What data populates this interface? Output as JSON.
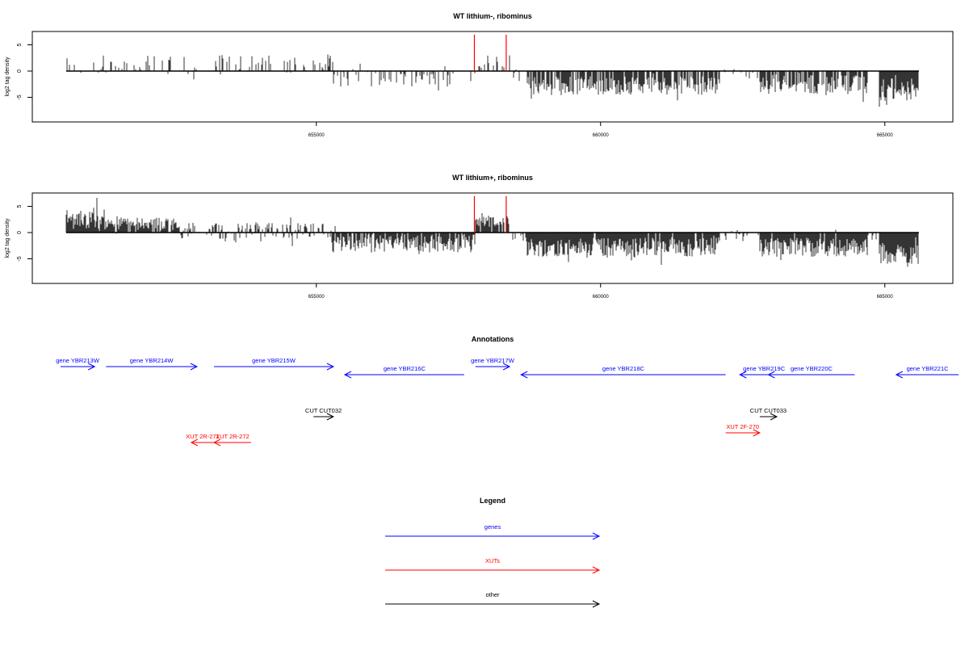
{
  "chart_data": [
    {
      "type": "bar",
      "title": "WT lithium-, ribominus",
      "ylabel": "log2 tag density",
      "xlim": [
        650500,
        665800
      ],
      "ylim": [
        -9,
        7
      ],
      "x_ticks": [
        655000,
        660000,
        665000
      ],
      "y_ticks": [
        5,
        0,
        -5
      ],
      "highlight_positions": [
        657780,
        658340
      ],
      "highlight_color": "#ff0000",
      "bar_color": "#000000",
      "segments": [
        {
          "from": 650600,
          "to": 652800,
          "base": 1.2,
          "amp": 3.0,
          "density": 0.25
        },
        {
          "from": 652800,
          "to": 653200,
          "base": -0.8,
          "amp": 2.5,
          "density": 0.15
        },
        {
          "from": 653200,
          "to": 655300,
          "base": 1.4,
          "amp": 3.0,
          "density": 0.3
        },
        {
          "from": 655300,
          "to": 657800,
          "base": -1.4,
          "amp": 2.6,
          "density": 0.35
        },
        {
          "from": 657800,
          "to": 658400,
          "base": 1.8,
          "amp": 2.0,
          "density": 0.3
        },
        {
          "from": 658400,
          "to": 658700,
          "base": -0.6,
          "amp": 1.5,
          "density": 0.2
        },
        {
          "from": 658700,
          "to": 662100,
          "base": -2.8,
          "amp": 3.0,
          "density": 0.8
        },
        {
          "from": 662100,
          "to": 662800,
          "base": -0.5,
          "amp": 1.5,
          "density": 0.2
        },
        {
          "from": 662800,
          "to": 664700,
          "base": -2.6,
          "amp": 3.0,
          "density": 0.8
        },
        {
          "from": 664700,
          "to": 664900,
          "base": 0.2,
          "amp": 1.0,
          "density": 0.1
        },
        {
          "from": 664900,
          "to": 665600,
          "base": -3.5,
          "amp": 3.5,
          "density": 1.0
        }
      ]
    },
    {
      "type": "bar",
      "title": "WT lithium+, ribominus",
      "ylabel": "log2 tag density",
      "xlim": [
        650500,
        665800
      ],
      "ylim": [
        -9,
        7
      ],
      "x_ticks": [
        655000,
        660000,
        665000
      ],
      "y_ticks": [
        5,
        0,
        -5
      ],
      "highlight_positions": [
        657780,
        658340
      ],
      "highlight_color": "#ff0000",
      "bar_color": "#000000",
      "segments": [
        {
          "from": 650600,
          "to": 651300,
          "base": 2.4,
          "amp": 3.5,
          "density": 1.0
        },
        {
          "from": 651300,
          "to": 652600,
          "base": 1.6,
          "amp": 2.0,
          "density": 0.9
        },
        {
          "from": 652600,
          "to": 655200,
          "base": 0.3,
          "amp": 2.5,
          "density": 0.6
        },
        {
          "from": 655200,
          "to": 657800,
          "base": -2.0,
          "amp": 3.0,
          "density": 0.9
        },
        {
          "from": 657800,
          "to": 658400,
          "base": 2.0,
          "amp": 2.0,
          "density": 0.9
        },
        {
          "from": 658400,
          "to": 658700,
          "base": -1.0,
          "amp": 2.0,
          "density": 0.4
        },
        {
          "from": 658700,
          "to": 662100,
          "base": -2.8,
          "amp": 3.0,
          "density": 0.95
        },
        {
          "from": 662100,
          "to": 662800,
          "base": -0.6,
          "amp": 1.8,
          "density": 0.4
        },
        {
          "from": 662800,
          "to": 664700,
          "base": -2.8,
          "amp": 3.0,
          "density": 0.95
        },
        {
          "from": 664700,
          "to": 664900,
          "base": -0.5,
          "amp": 1.5,
          "density": 0.4
        },
        {
          "from": 664900,
          "to": 665600,
          "base": -4.0,
          "amp": 3.5,
          "density": 1.0
        }
      ]
    }
  ],
  "annotations": {
    "title": "Annotations",
    "items": [
      {
        "label": "gene YBR213W",
        "color": "#0000ff",
        "direction": "right",
        "lane": 0,
        "start": 650500,
        "end": 651100
      },
      {
        "label": "gene YBR214W",
        "color": "#0000ff",
        "direction": "right",
        "lane": 0,
        "start": 651300,
        "end": 652900
      },
      {
        "label": "gene YBR215W",
        "color": "#0000ff",
        "direction": "right",
        "lane": 0,
        "start": 653200,
        "end": 655300
      },
      {
        "label": "gene YBR216C",
        "color": "#0000ff",
        "direction": "left",
        "lane": 1,
        "start": 655500,
        "end": 657600
      },
      {
        "label": "gene YBR217W",
        "color": "#0000ff",
        "direction": "right",
        "lane": 0,
        "start": 657800,
        "end": 658400
      },
      {
        "label": "gene YBR218C",
        "color": "#0000ff",
        "direction": "left",
        "lane": 1,
        "start": 658600,
        "end": 662200
      },
      {
        "label": "gene YBR219C",
        "color": "#0000ff",
        "direction": "left",
        "lane": 1,
        "start": 662450,
        "end": 663300
      },
      {
        "label": "gene YBR220C",
        "color": "#0000ff",
        "direction": "left",
        "lane": 1,
        "start": 662950,
        "end": 664470
      },
      {
        "label": "gene YBR221C",
        "color": "#0000ff",
        "direction": "left",
        "lane": 1,
        "start": 665200,
        "end": 666300
      },
      {
        "label": "CUT CUT032",
        "color": "#000000",
        "direction": "right",
        "lane": 2,
        "start": 654950,
        "end": 655300
      },
      {
        "label": "CUT CUT033",
        "color": "#000000",
        "direction": "right",
        "lane": 2,
        "start": 662800,
        "end": 663100
      },
      {
        "label": "XUT 2R-271",
        "color": "#ff0000",
        "direction": "left",
        "lane": 3,
        "start": 652800,
        "end": 653200
      },
      {
        "label": "XUT 2R-272",
        "color": "#ff0000",
        "direction": "left",
        "lane": 3,
        "start": 653200,
        "end": 653850
      },
      {
        "label": "XUT 2F-270",
        "color": "#ff0000",
        "direction": "right",
        "lane": 4,
        "start": 662200,
        "end": 662800
      }
    ]
  },
  "legend": {
    "title": "Legend",
    "items": [
      {
        "label": "genes",
        "color": "#0000ff"
      },
      {
        "label": "XUTs",
        "color": "#ff0000"
      },
      {
        "label": "other",
        "color": "#000000"
      }
    ]
  }
}
